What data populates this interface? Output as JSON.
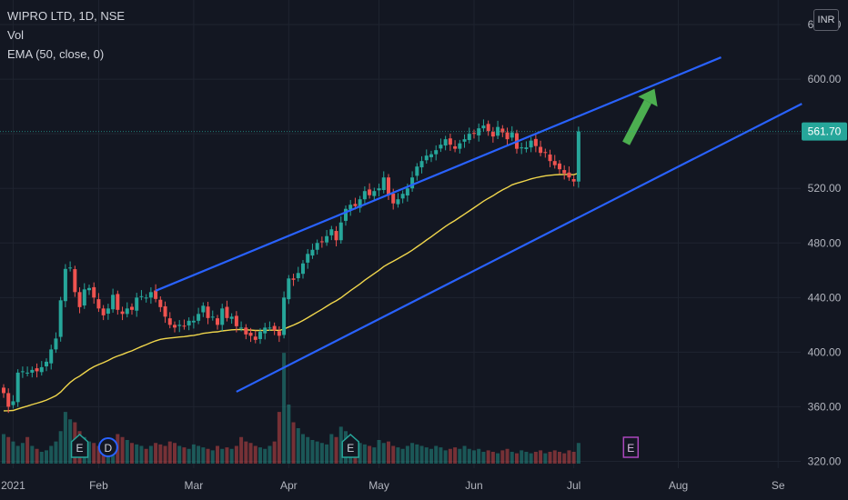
{
  "header": {
    "symbol_line": "WIPRO LTD, 1D, NSE",
    "volume_label": "Vol",
    "ema_label": "EMA (50, close, 0)",
    "currency": "INR"
  },
  "colors": {
    "background": "#131722",
    "grid": "#1f2430",
    "up_candle": "#26a69a",
    "down_candle": "#ef5350",
    "ema_line": "#f0d64c",
    "channel_line": "#2962ff",
    "target_arrow": "#4caf50",
    "price_label_bg": "#26a69a",
    "axis_text": "#b2b5be",
    "earnings_marker": "#26a69a",
    "dividend_marker": "#2962ff",
    "upcoming_earnings_marker": "#ab47bc"
  },
  "chart_data": {
    "type": "candlestick",
    "title": "WIPRO LTD, 1D, NSE",
    "y_axis": {
      "ticks": [
        "320.00",
        "360.00",
        "400.00",
        "440.00",
        "480.00",
        "520.00",
        "560.00",
        "600.00",
        "640.00"
      ],
      "tick_values": [
        320,
        360,
        400,
        440,
        480,
        520,
        560,
        600,
        640
      ],
      "range": [
        315,
        658
      ]
    },
    "x_axis": {
      "ticks": [
        {
          "label": "2021",
          "index": 2
        },
        {
          "label": "Feb",
          "index": 20
        },
        {
          "label": "Mar",
          "index": 40
        },
        {
          "label": "Apr",
          "index": 60
        },
        {
          "label": "May",
          "index": 79
        },
        {
          "label": "Jun",
          "index": 99
        },
        {
          "label": "Jul",
          "index": 120
        },
        {
          "label": "Aug",
          "index": 142
        },
        {
          "label": "Se",
          "index": 163
        }
      ],
      "range": [
        0,
        167
      ]
    },
    "last_price": 561.7,
    "last_price_label": "561.70",
    "closes": [
      370,
      360,
      364,
      385,
      386,
      385,
      387,
      386,
      389,
      393,
      402,
      410,
      438,
      461,
      462,
      444,
      433,
      446,
      447,
      440,
      432,
      427,
      432,
      442,
      431,
      428,
      432,
      431,
      440,
      441,
      440,
      444,
      439,
      433,
      426,
      420,
      418,
      420,
      419,
      423,
      423,
      428,
      434,
      425,
      426,
      420,
      432,
      425,
      426,
      419,
      418,
      413,
      412,
      409,
      415,
      418,
      418,
      416,
      412,
      440,
      454,
      453,
      458,
      465,
      472,
      475,
      480,
      481,
      485,
      490,
      482,
      495,
      505,
      508,
      507,
      512,
      518,
      515,
      518,
      520,
      528,
      515,
      509,
      512,
      516,
      520,
      528,
      536,
      540,
      544,
      545,
      548,
      552,
      556,
      552,
      549,
      553,
      556,
      560,
      560,
      564,
      566,
      562,
      558,
      565,
      561,
      556,
      561,
      549,
      550,
      550,
      555,
      551,
      546,
      546,
      540,
      537,
      534,
      531,
      528,
      525,
      561.7
    ],
    "volumes": [
      20,
      18,
      15,
      12,
      14,
      18,
      12,
      10,
      8,
      9,
      12,
      15,
      22,
      35,
      30,
      28,
      22,
      18,
      15,
      14,
      12,
      13,
      12,
      15,
      20,
      18,
      16,
      14,
      13,
      12,
      10,
      12,
      14,
      13,
      12,
      15,
      14,
      12,
      11,
      10,
      13,
      12,
      11,
      10,
      9,
      12,
      10,
      11,
      10,
      12,
      18,
      15,
      14,
      12,
      11,
      10,
      12,
      15,
      35,
      75,
      40,
      28,
      24,
      20,
      18,
      16,
      15,
      14,
      13,
      20,
      18,
      25,
      22,
      18,
      16,
      14,
      13,
      12,
      11,
      16,
      14,
      15,
      12,
      11,
      10,
      12,
      14,
      13,
      12,
      11,
      10,
      12,
      11,
      9,
      10,
      11,
      10,
      12,
      10,
      9,
      10,
      8,
      9,
      8,
      7,
      9,
      10,
      8,
      7,
      9,
      8,
      7,
      8,
      9,
      7,
      8,
      9,
      8,
      7,
      9,
      8,
      14
    ],
    "volume_range": [
      0,
      80
    ],
    "ema": {
      "name": "EMA (50, close, 0)",
      "values": [
        357.0,
        357.1,
        357.3,
        358.4,
        359.5,
        360.5,
        361.6,
        362.6,
        363.7,
        364.9,
        366.4,
        368.1,
        370.8,
        374.4,
        377.8,
        380.5,
        382.5,
        384.9,
        387.3,
        389.3,
        390.9,
        392.3,
        393.9,
        395.8,
        397.2,
        398.4,
        399.8,
        401.0,
        402.6,
        404.1,
        405.5,
        407.0,
        408.3,
        409.4,
        410.0,
        410.4,
        410.7,
        411.1,
        411.4,
        411.9,
        412.3,
        412.9,
        413.8,
        414.2,
        414.7,
        414.9,
        415.6,
        416.0,
        416.4,
        416.5,
        416.6,
        416.4,
        416.2,
        415.9,
        415.9,
        416.0,
        416.1,
        416.1,
        415.9,
        416.9,
        418.4,
        419.8,
        421.4,
        423.2,
        425.2,
        427.3,
        429.4,
        431.4,
        433.6,
        435.8,
        437.6,
        439.9,
        442.5,
        445.1,
        447.5,
        450.0,
        452.7,
        455.1,
        457.6,
        460.0,
        462.7,
        464.8,
        466.6,
        468.5,
        470.5,
        472.5,
        474.7,
        477.2,
        479.6,
        482.2,
        484.6,
        487.1,
        489.6,
        492.1,
        494.4,
        496.5,
        498.8,
        501.1,
        503.5,
        505.8,
        508.2,
        510.6,
        512.7,
        514.6,
        516.9,
        518.9,
        520.6,
        522.6,
        523.7,
        524.7,
        525.8,
        526.9,
        527.8,
        528.5,
        529.2,
        529.6,
        529.9,
        530.1,
        530.2,
        530.2,
        530.0,
        531.2
      ]
    },
    "channel_lines": [
      {
        "name": "upper channel",
        "from": {
          "index": 32,
          "price": 445
        },
        "to": {
          "index": 151,
          "price": 616
        }
      },
      {
        "name": "lower channel",
        "from": {
          "index": 49,
          "price": 371
        },
        "to": {
          "index": 168,
          "price": 582
        }
      }
    ],
    "arrow": {
      "from": {
        "index": 131,
        "price": 553
      },
      "to": {
        "index": 137,
        "price": 593
      }
    },
    "event_markers": [
      {
        "label": "E",
        "type": "earnings",
        "index": 16
      },
      {
        "label": "D",
        "type": "dividend",
        "index": 22
      },
      {
        "label": "E",
        "type": "earnings",
        "index": 73
      },
      {
        "label": "E",
        "type": "upcoming-earnings",
        "index": 132
      }
    ]
  }
}
